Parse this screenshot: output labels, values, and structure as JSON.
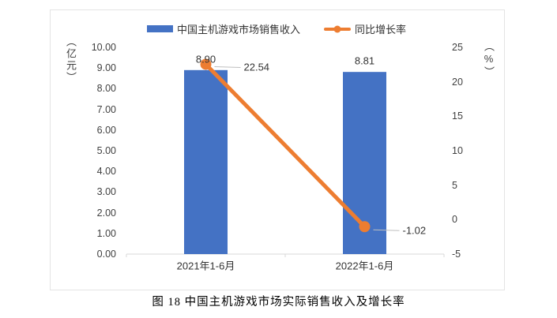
{
  "caption": "图 18 中国主机游戏市场实际销售收入及增长率",
  "chart_data": {
    "type": "bar+line",
    "title": "图 18 中国主机游戏市场实际销售收入及增长率",
    "categories": [
      "2021年1-6月",
      "2022年1-6月"
    ],
    "series": [
      {
        "name": "中国主机游戏市场销售收入",
        "type": "bar",
        "axis": "left",
        "values": [
          8.9,
          8.81
        ],
        "labels": [
          "8.90",
          "8.81"
        ],
        "color": "#4472C4"
      },
      {
        "name": "同比增长率",
        "type": "line",
        "axis": "right",
        "values": [
          22.54,
          -1.02
        ],
        "labels": [
          "22.54",
          "-1.02"
        ],
        "color": "#ED7D31"
      }
    ],
    "left_axis": {
      "title": "（亿元）",
      "ticks": [
        "10.00",
        "9.00",
        "8.00",
        "7.00",
        "6.00",
        "5.00",
        "4.00",
        "3.00",
        "2.00",
        "1.00",
        "0.00"
      ],
      "min": 0,
      "max": 10
    },
    "right_axis": {
      "title": "（%）",
      "ticks": [
        "25",
        "20",
        "15",
        "10",
        "5",
        "0",
        "-5"
      ],
      "min": -5,
      "max": 25
    },
    "grid": false,
    "legend_position": "top"
  }
}
